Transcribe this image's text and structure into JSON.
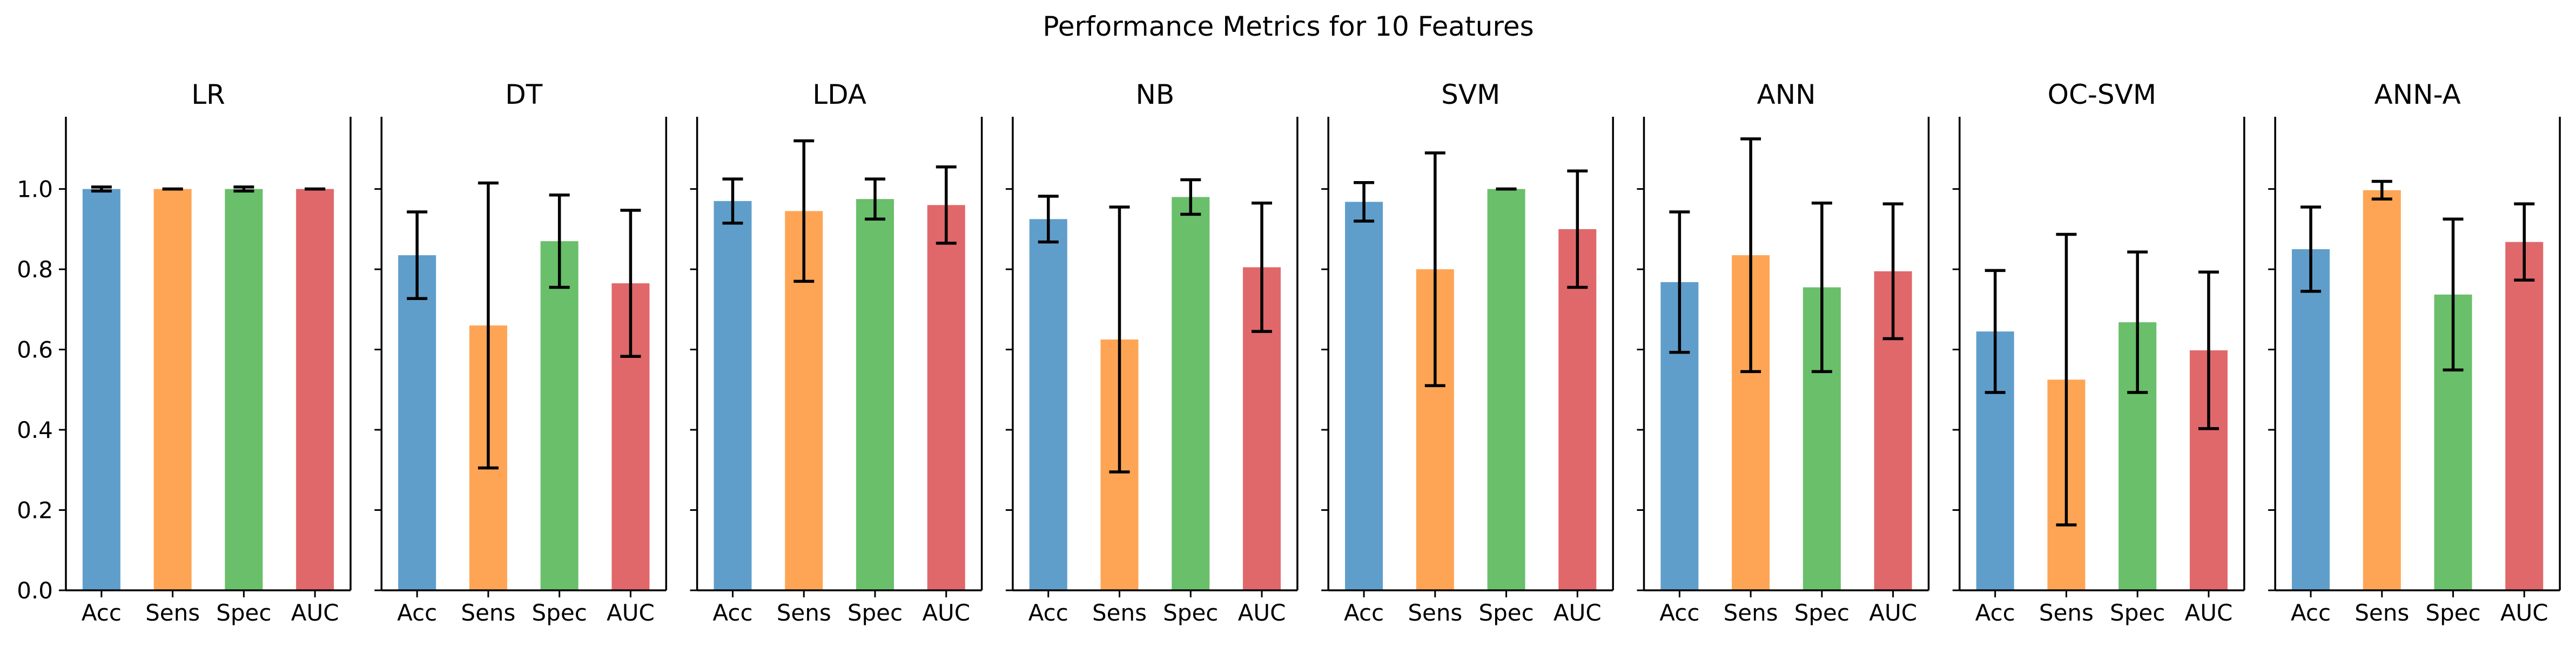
{
  "chart_data": {
    "type": "bar",
    "title": "Performance Metrics for 10 Features",
    "metrics": [
      "Acc",
      "Sens",
      "Spec",
      "AUC"
    ],
    "colors": {
      "Acc": "#5f9ecb",
      "Sens": "#fea555",
      "Spec": "#6abf6a",
      "AUC": "#e0686a"
    },
    "ylim": [
      0,
      1.18
    ],
    "yticks": [
      "0.0",
      "0.2",
      "0.4",
      "0.6",
      "0.8",
      "1.0"
    ],
    "ytick_values": [
      0.0,
      0.2,
      0.4,
      0.6,
      0.8,
      1.0
    ],
    "shared_y": true,
    "grid": false,
    "error_bars": true,
    "panels": [
      {
        "model": "LR",
        "values": [
          1.0,
          1.0,
          1.0,
          1.0
        ],
        "errors": [
          0.005,
          0.0,
          0.005,
          0.0
        ]
      },
      {
        "model": "DT",
        "values": [
          0.835,
          0.66,
          0.87,
          0.765
        ],
        "errors": [
          0.108,
          0.355,
          0.115,
          0.182
        ]
      },
      {
        "model": "LDA",
        "values": [
          0.97,
          0.945,
          0.975,
          0.96
        ],
        "errors": [
          0.055,
          0.175,
          0.05,
          0.095
        ]
      },
      {
        "model": "NB",
        "values": [
          0.925,
          0.625,
          0.98,
          0.805
        ],
        "errors": [
          0.057,
          0.33,
          0.043,
          0.16
        ]
      },
      {
        "model": "SVM",
        "values": [
          0.968,
          0.8,
          1.0,
          0.9
        ],
        "errors": [
          0.048,
          0.29,
          0.0,
          0.145
        ]
      },
      {
        "model": "ANN",
        "values": [
          0.768,
          0.835,
          0.755,
          0.795
        ],
        "errors": [
          0.175,
          0.29,
          0.21,
          0.168
        ]
      },
      {
        "model": "OC-SVM",
        "values": [
          0.645,
          0.525,
          0.668,
          0.598
        ],
        "errors": [
          0.152,
          0.362,
          0.175,
          0.195
        ]
      },
      {
        "model": "ANN-A",
        "values": [
          0.85,
          0.997,
          0.737,
          0.868
        ],
        "errors": [
          0.105,
          0.022,
          0.188,
          0.095
        ]
      }
    ]
  }
}
